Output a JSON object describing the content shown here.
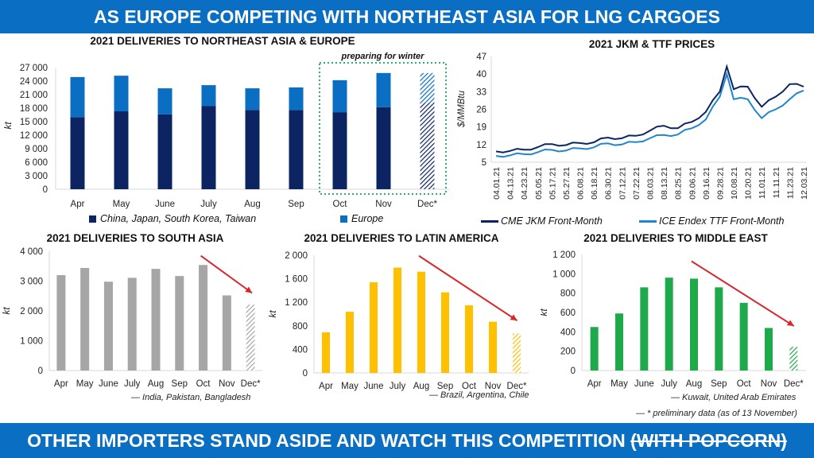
{
  "header": {
    "title": "AS EUROPE COMPETING WITH NORTHEAST ASIA FOR LNG CARGOES"
  },
  "footer": {
    "text": "OTHER IMPORTERS STAND ASIDE AND WATCH THIS COMPETITION",
    "strike_text": "(WITH POPCORN)"
  },
  "colors": {
    "banner": "#0a6fc2",
    "asia": "#0c2461",
    "europe": "#0a6fc2",
    "jkm": "#0c2461",
    "ttf": "#1f86cf",
    "south_asia": "#a6a6a6",
    "latin_america": "#ffc000",
    "middle_east": "#1ea94a",
    "arrow": "#d9262b",
    "winter_box": "#2bb36b"
  },
  "footnote": "— * preliminary data (as of 13 November)",
  "chart_data": [
    {
      "id": "northeast-asia-europe",
      "type": "bar",
      "stacked": true,
      "title": "2021 DELIVERIES TO NORTHEAST ASIA & EUROPE",
      "ylabel": "kt",
      "ylim": [
        0,
        27000
      ],
      "yticks": [
        "0",
        "3 000",
        "6 000",
        "9 000",
        "12 000",
        "15 000",
        "18 000",
        "21 000",
        "24 000",
        "27 000"
      ],
      "categories": [
        "Apr",
        "May",
        "June",
        "July",
        "Aug",
        "Sep",
        "Oct",
        "Nov",
        "Dec*"
      ],
      "series": [
        {
          "name": "China, Japan, South Korea, Taiwan",
          "values": [
            16000,
            17300,
            16600,
            18500,
            17600,
            17600,
            17100,
            18200,
            19200
          ]
        },
        {
          "name": "Europe",
          "values": [
            8900,
            7900,
            5800,
            4600,
            4800,
            5000,
            7100,
            7600,
            6600
          ]
        }
      ],
      "annotation": "preparing for winter",
      "annotation_span": [
        "Oct",
        "Nov",
        "Dec*"
      ],
      "preliminary": [
        "Dec*"
      ],
      "legend_position": "bottom"
    },
    {
      "id": "jkm-ttf-prices",
      "type": "line",
      "title": "2021 JKM & TTF PRICES",
      "ylabel": "$/MMBtu",
      "ylim": [
        5,
        47
      ],
      "yticks": [
        "5",
        "12",
        "19",
        "26",
        "33",
        "40",
        "47"
      ],
      "x": [
        "04.01.21",
        "04.13.21",
        "04.23.21",
        "05.05.21",
        "05.17.21",
        "05.27.21",
        "06.08.21",
        "06.18.21",
        "06.30.21",
        "07.12.21",
        "07.22.21",
        "08.03.21",
        "08.13.21",
        "08.25.21",
        "09.06.21",
        "09.16.21",
        "09.28.21",
        "10.08.21",
        "10.20.21",
        "11.01.21",
        "11.11.21",
        "11.23.21",
        "12.03.21"
      ],
      "series": [
        {
          "name": "CME JKM Front-Month",
          "values": [
            9.3,
            9.5,
            10.0,
            11.0,
            12.2,
            11.8,
            12.6,
            12.9,
            14.8,
            14.5,
            15.5,
            17.5,
            19.5,
            18.5,
            21.0,
            25.0,
            33.0,
            34.0,
            35.0,
            27.0,
            31.0,
            36.0,
            35.0
          ]
        },
        {
          "name": "ICE Endex TTF Front-Month",
          "values": [
            7.5,
            7.7,
            8.2,
            9.0,
            9.9,
            9.6,
            10.5,
            10.9,
            12.5,
            12.0,
            13.0,
            14.5,
            15.8,
            16.0,
            18.5,
            22.0,
            31.0,
            30.0,
            30.0,
            22.5,
            26.0,
            30.0,
            33.5
          ]
        }
      ],
      "peak": {
        "x": "10.05.21",
        "jkm": 43,
        "ttf": 40
      },
      "legend_position": "bottom"
    },
    {
      "id": "south-asia",
      "type": "bar",
      "title": "2021 DELIVERIES TO SOUTH ASIA",
      "ylabel": "kt",
      "ylim": [
        0,
        4000
      ],
      "yticks": [
        "0",
        "1 000",
        "2 000",
        "3 000",
        "4 000"
      ],
      "categories": [
        "Apr",
        "May",
        "June",
        "July",
        "Aug",
        "Sep",
        "Oct",
        "Nov",
        "Dec*"
      ],
      "values": [
        3200,
        3440,
        2980,
        3110,
        3410,
        3170,
        3540,
        2520,
        2210
      ],
      "subtitle": "— India, Pakistan, Bangladesh",
      "preliminary": [
        "Dec*"
      ],
      "annotation": "downward trend arrow Oct→Dec"
    },
    {
      "id": "latin-america",
      "type": "bar",
      "title": "2021 DELIVERIES TO LATIN AMERICA",
      "ylabel": "kt",
      "ylim": [
        0,
        2000
      ],
      "yticks": [
        "0",
        "400",
        "800",
        "1 200",
        "1 600",
        "2 000"
      ],
      "categories": [
        "Apr",
        "May",
        "June",
        "July",
        "Aug",
        "Sep",
        "Oct",
        "Nov",
        "Dec*"
      ],
      "values": [
        690,
        1040,
        1540,
        1790,
        1720,
        1370,
        1150,
        870,
        670
      ],
      "subtitle": "— Brazil, Argentina, Chile",
      "preliminary": [
        "Dec*"
      ],
      "annotation": "downward trend arrow Aug→Dec"
    },
    {
      "id": "middle-east",
      "type": "bar",
      "title": "2021 DELIVERIES TO MIDDLE EAST",
      "ylabel": "kt",
      "ylim": [
        0,
        1200
      ],
      "yticks": [
        "0",
        "200",
        "400",
        "600",
        "800",
        "1 000",
        "1 200"
      ],
      "categories": [
        "Apr",
        "May",
        "June",
        "July",
        "Aug",
        "Sep",
        "Oct",
        "Nov",
        "Dec*"
      ],
      "values": [
        450,
        590,
        860,
        960,
        950,
        860,
        700,
        440,
        245
      ],
      "subtitle": "— Kuwait, United Arab Emirates",
      "preliminary": [
        "Dec*"
      ],
      "annotation": "downward trend arrow Aug→Dec"
    }
  ]
}
